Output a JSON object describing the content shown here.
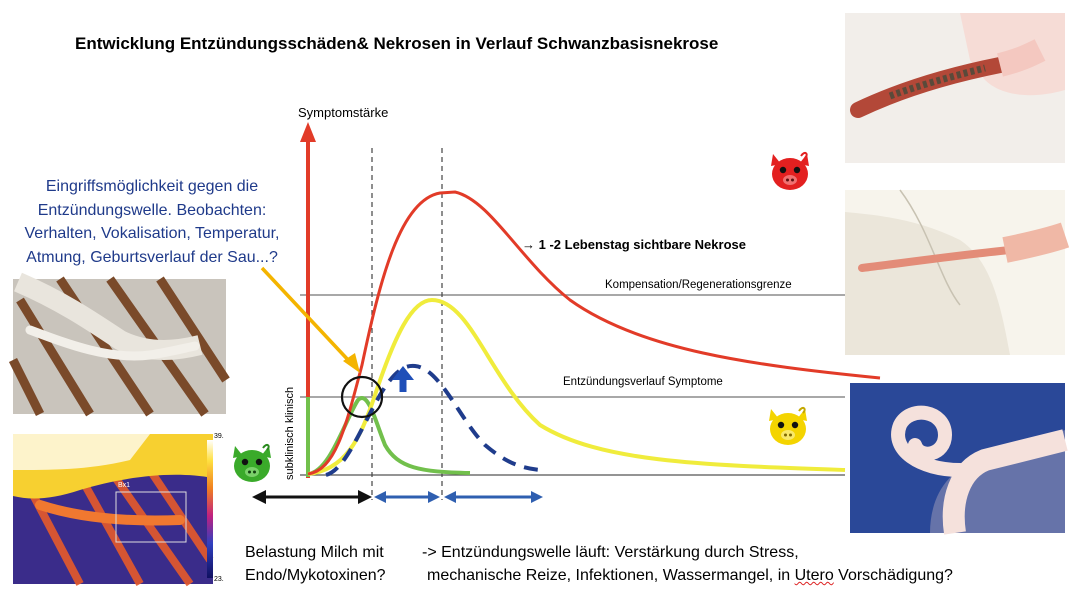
{
  "title": "Entwicklung  Entzündungsschäden& Nekrosen in Verlauf Schwanzbasisnekrose",
  "y_axis_label": "Symptomstärke",
  "zone_labels": {
    "clinical": "klinisch",
    "subclinical": "subklinisch"
  },
  "callout": {
    "lines": [
      "Eingriffsmöglichkeit gegen die",
      "Entzündungswelle. Beobachten:",
      "Verhalten, Vokalisation, Temperatur,",
      "Atmung, Geburtsverlauf der Sau...?"
    ]
  },
  "annotations": {
    "necrosis": "→ 1 -2 Lebenstag sichtbare Nekrose",
    "compensation": "Kompensation/Regenerationsgrenze",
    "inflammation": "Entzündungsverlauf Symptome"
  },
  "bottom": {
    "left_line1": "Belastung Milch mit",
    "left_line2": "Endo/Mykotoxinen?",
    "right_line1": "-> Entzündungswelle läuft: Verstärkung durch Stress,",
    "right_line2_pre": "mechanische Reize, Infektionen, Wassermangel,  in ",
    "right_line2_marked": "Utero",
    "right_line2_post": " Vorschädigung?"
  },
  "thermal_scale": {
    "max": "39.",
    "min": "23.",
    "marker": "Bx1"
  },
  "pig_icons": [
    {
      "name": "red-pig-icon",
      "color": "#e32020"
    },
    {
      "name": "yellow-pig-icon",
      "color": "#f4d400"
    },
    {
      "name": "green-pig-icon",
      "color": "#3aaa2a"
    }
  ],
  "colors": {
    "red_curve": "#e23b28",
    "yellow_curve": "#f0ec3c",
    "green_curve": "#72c04c",
    "blue_dashed": "#1f3c8c",
    "callout_arrow": "#f4b400",
    "threshold_line": "#888888"
  }
}
